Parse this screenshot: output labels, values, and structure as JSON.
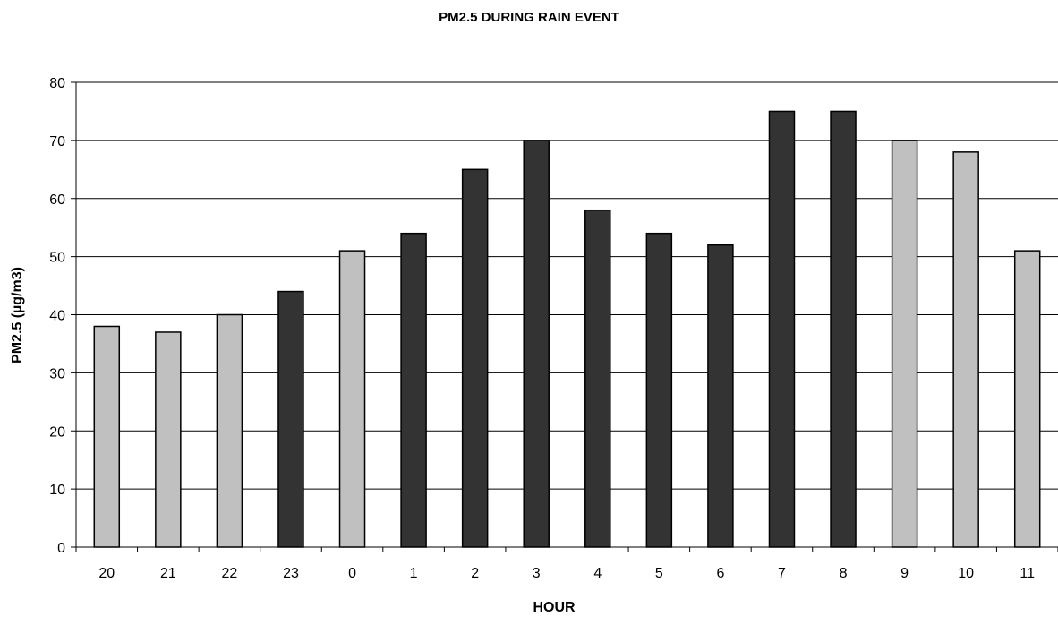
{
  "chart_data": {
    "type": "bar",
    "title": "PM2.5 DURING RAIN EVENT",
    "xlabel": "HOUR",
    "ylabel": "PM2.5 (µg/m3)",
    "ylim": [
      0,
      80
    ],
    "yticks": [
      0,
      10,
      20,
      30,
      40,
      50,
      60,
      70,
      80
    ],
    "grid": true,
    "categories": [
      "20",
      "21",
      "22",
      "23",
      "0",
      "1",
      "2",
      "3",
      "4",
      "5",
      "6",
      "7",
      "8",
      "9",
      "10",
      "11"
    ],
    "values": [
      38,
      37,
      40,
      44,
      51,
      54,
      65,
      70,
      58,
      54,
      52,
      75,
      75,
      70,
      68,
      51
    ],
    "bar_colors": [
      "#c0c0c0",
      "#c0c0c0",
      "#c0c0c0",
      "#333333",
      "#c0c0c0",
      "#333333",
      "#333333",
      "#333333",
      "#333333",
      "#333333",
      "#333333",
      "#333333",
      "#333333",
      "#c0c0c0",
      "#c0c0c0",
      "#c0c0c0"
    ]
  },
  "colors": {
    "light_bar": "#c0c0c0",
    "dark_bar": "#333333",
    "gridline": "#000000",
    "background": "#ffffff"
  }
}
